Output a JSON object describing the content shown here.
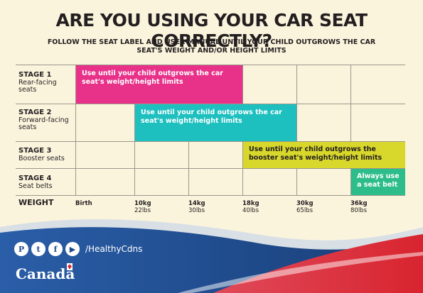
{
  "header": {
    "title": "ARE YOU USING YOUR CAR SEAT CORRECTLY?",
    "subtitle": "FOLLOW THE SEAT LABEL AND USER MANUAL UNTIL YOUR CHILD OUTGROWS THE CAR SEAT'S WEIGHT AND/OR HEIGHT LIMITS"
  },
  "stages": [
    {
      "num": "STAGE 1",
      "desc": "Rear-facing seats",
      "bar_text": "Use until your child outgrows the car seat's weight/height limits",
      "color": "#e8328a"
    },
    {
      "num": "STAGE 2",
      "desc": "Forward-facing seats",
      "bar_text": "Use until your child outgrows the car seat's weight/height limits",
      "color": "#1dbfbf"
    },
    {
      "num": "STAGE 3",
      "desc": "Booster seats",
      "bar_text": "Use until your child outgrows the booster seat's weight/height limits",
      "color": "#d8d72b"
    },
    {
      "num": "STAGE 4",
      "desc": "Seat belts",
      "bar_text": "Always use a seat belt",
      "color": "#2dbd8a"
    }
  ],
  "weight": {
    "label": "WEIGHT",
    "ticks": [
      {
        "kg": "Birth",
        "lbs": ""
      },
      {
        "kg": "10kg",
        "lbs": "22lbs"
      },
      {
        "kg": "14kg",
        "lbs": "30lbs"
      },
      {
        "kg": "18kg",
        "lbs": "40lbs"
      },
      {
        "kg": "30kg",
        "lbs": "65lbs"
      },
      {
        "kg": "36kg",
        "lbs": "80lbs"
      }
    ]
  },
  "footer": {
    "social_icons": [
      "pinterest-icon",
      "twitter-icon",
      "facebook-icon",
      "youtube-icon"
    ],
    "handle": "/HealthyCdns",
    "wordmark": "Canada"
  },
  "colors": {
    "background": "#fbf4dd",
    "footer_blue": "#1f4a8a",
    "footer_red": "#d8242f"
  }
}
